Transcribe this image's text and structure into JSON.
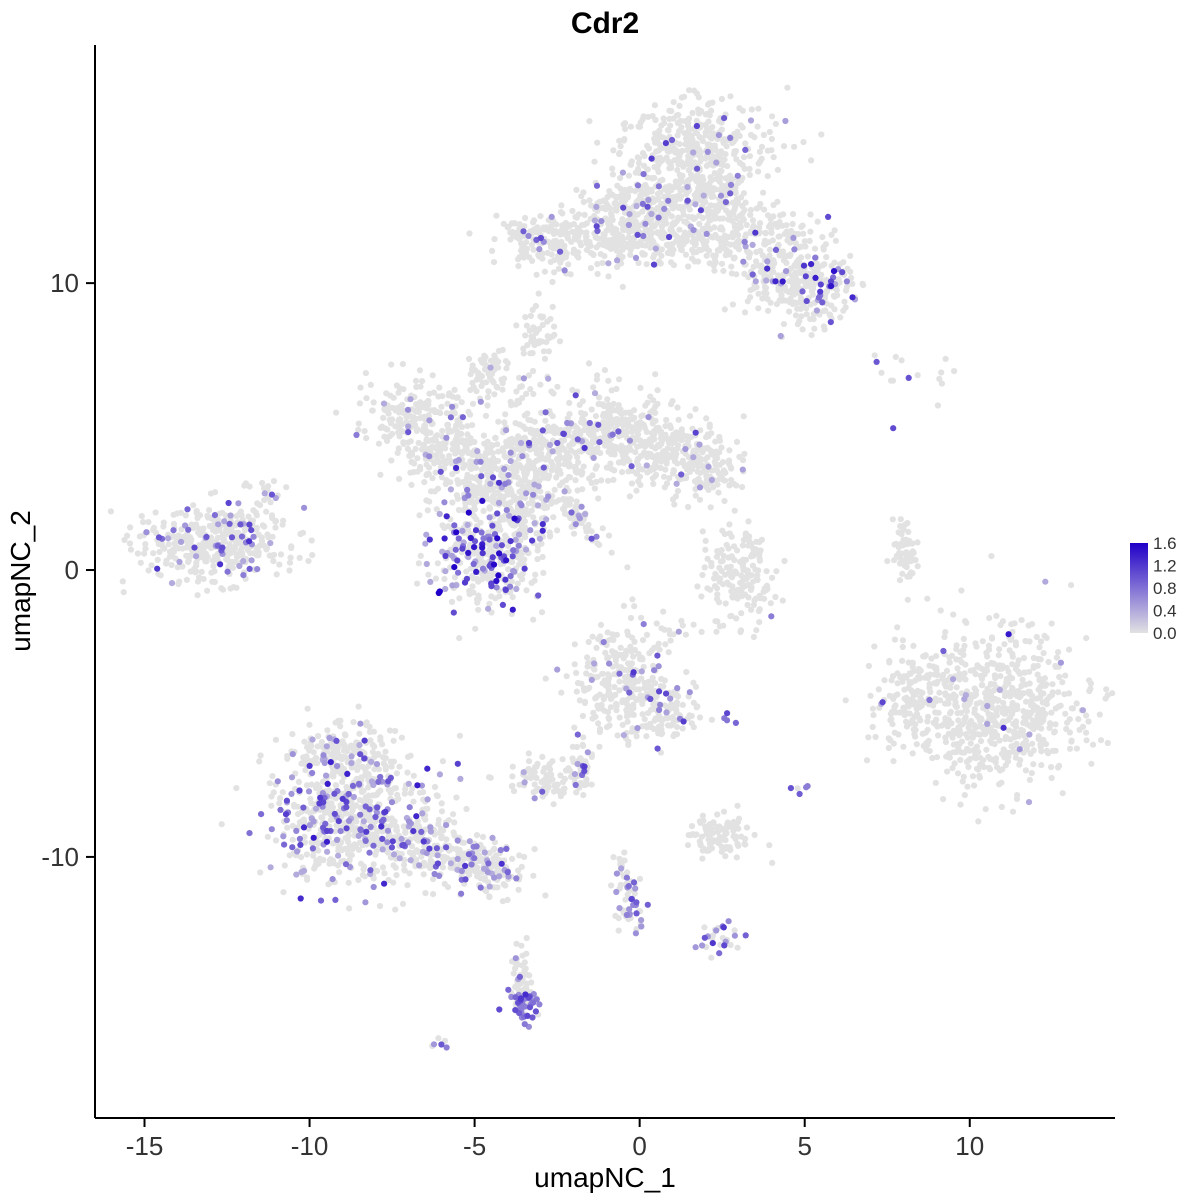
{
  "title": "Cdr2",
  "axes": {
    "x_label": "umapNC_1",
    "y_label": "umapNC_2",
    "x_ticks": [
      -15,
      -10,
      -5,
      0,
      5,
      10
    ],
    "y_ticks": [
      -10,
      0,
      10
    ]
  },
  "legend": {
    "labels": [
      "1.6",
      "1.2",
      "0.8",
      "0.4",
      "0.0"
    ],
    "max": 1.6,
    "low_color": "#E2E2E2",
    "high_color": "#2000C8"
  },
  "chart_data": {
    "type": "scatter",
    "title": "Cdr2",
    "xlabel": "umapNC_1",
    "ylabel": "umapNC_2",
    "xlim": [
      -16.5,
      14.4
    ],
    "ylim": [
      -19.1,
      18.3
    ],
    "grid": false,
    "legend_position": "right",
    "point_radius": 3.1,
    "seed": 20240615,
    "clusters": [
      {
        "name": "top-blob",
        "cx": 1.7,
        "cy": 14.7,
        "sx": 1.15,
        "sy": 0.85,
        "n": 380,
        "frac": 0.05,
        "emax": 1.3
      },
      {
        "name": "top-blob-left",
        "cx": -0.3,
        "cy": 12.4,
        "sx": 0.7,
        "sy": 0.6,
        "n": 160,
        "frac": 0.04,
        "emax": 1.2
      },
      {
        "name": "top-blob-right",
        "cx": 2.5,
        "cy": 13.0,
        "sx": 0.7,
        "sy": 0.6,
        "n": 110,
        "frac": 0.07,
        "emax": 1.2
      },
      {
        "name": "top-band",
        "cx": 0.6,
        "cy": 11.6,
        "sx": 2.1,
        "sy": 0.55,
        "n": 420,
        "frac": 0.05,
        "emax": 1.3
      },
      {
        "name": "top-band-left",
        "cx": -2.6,
        "cy": 11.4,
        "sx": 0.7,
        "sy": 0.45,
        "n": 110,
        "frac": 0.07,
        "emax": 1.2
      },
      {
        "name": "top-band-left-tip",
        "cx": -3.4,
        "cy": 11.9,
        "sx": 0.3,
        "sy": 0.3,
        "n": 35,
        "frac": 0.05,
        "emax": 1.0
      },
      {
        "name": "top-right-arm",
        "cx": 4.4,
        "cy": 10.5,
        "sx": 0.75,
        "sy": 0.8,
        "n": 240,
        "frac": 0.1,
        "emax": 1.4
      },
      {
        "name": "top-right-tip",
        "cx": 5.5,
        "cy": 9.6,
        "sx": 0.55,
        "sy": 0.6,
        "n": 110,
        "frac": 0.12,
        "emax": 1.5
      },
      {
        "name": "top-hook",
        "cx": -3.1,
        "cy": 8.2,
        "sx": 0.3,
        "sy": 0.5,
        "n": 45,
        "frac": 0.04,
        "emax": 0.8
      },
      {
        "name": "top-bridge",
        "cx": 1.2,
        "cy": 13.0,
        "sx": 0.9,
        "sy": 0.5,
        "n": 100,
        "frac": 0.05,
        "emax": 1.1
      },
      {
        "name": "mid-left-blob",
        "cx": -6.8,
        "cy": 5.4,
        "sx": 0.9,
        "sy": 0.65,
        "n": 190,
        "frac": 0.05,
        "emax": 1.2
      },
      {
        "name": "mid-left-lower",
        "cx": -5.8,
        "cy": 4.0,
        "sx": 0.8,
        "sy": 0.6,
        "n": 150,
        "frac": 0.06,
        "emax": 1.2
      },
      {
        "name": "mid-core",
        "cx": -4.3,
        "cy": 3.0,
        "sx": 0.95,
        "sy": 0.85,
        "n": 280,
        "frac": 0.12,
        "emax": 1.3
      },
      {
        "name": "mid-bridge",
        "cx": -3.0,
        "cy": 4.1,
        "sx": 0.8,
        "sy": 0.65,
        "n": 170,
        "frac": 0.07,
        "emax": 1.2
      },
      {
        "name": "mid-right-blob",
        "cx": -1.0,
        "cy": 4.8,
        "sx": 1.05,
        "sy": 0.8,
        "n": 300,
        "frac": 0.05,
        "emax": 1.2
      },
      {
        "name": "mid-right-ext",
        "cx": 0.9,
        "cy": 4.0,
        "sx": 1.0,
        "sy": 0.7,
        "n": 230,
        "frac": 0.04,
        "emax": 1.1
      },
      {
        "name": "mid-right-tip",
        "cx": 2.1,
        "cy": 3.5,
        "sx": 0.5,
        "sy": 0.5,
        "n": 70,
        "frac": 0.04,
        "emax": 1.0
      },
      {
        "name": "mid-purple-rich",
        "cx": -4.6,
        "cy": 0.5,
        "sx": 0.85,
        "sy": 0.85,
        "n": 340,
        "frac": 0.32,
        "emax": 1.6
      },
      {
        "name": "mid-dark-dot",
        "cx": -6.05,
        "cy": -0.75,
        "sx": 0.08,
        "sy": 0.08,
        "n": 2,
        "frac": 1.0,
        "emax": 1.6,
        "vmin": 1.6
      },
      {
        "name": "mid-diag-streak",
        "cx": -1.85,
        "cy": 1.75,
        "sx": 0.55,
        "sy": 0.18,
        "rot": -52,
        "n": 60,
        "frac": 0.12,
        "emax": 1.2
      },
      {
        "name": "mid-lower-bridge",
        "cx": -3.5,
        "cy": 2.0,
        "sx": 0.5,
        "sy": 0.5,
        "n": 70,
        "frac": 0.15,
        "emax": 1.2
      },
      {
        "name": "mid-top-noise",
        "cx": -4.0,
        "cy": 6.3,
        "sx": 0.8,
        "sy": 0.4,
        "n": 40,
        "frac": 0.03,
        "emax": 1.0
      },
      {
        "name": "mid-top-small-blob",
        "cx": -4.6,
        "cy": 7.0,
        "sx": 0.35,
        "sy": 0.3,
        "n": 45,
        "frac": 0.02,
        "emax": 0.8
      },
      {
        "name": "far-left-cluster",
        "cx": -12.9,
        "cy": 0.9,
        "sx": 1.05,
        "sy": 0.7,
        "n": 400,
        "frac": 0.1,
        "emax": 1.2
      },
      {
        "name": "far-left-tip",
        "cx": -11.3,
        "cy": 2.6,
        "sx": 0.3,
        "sy": 0.35,
        "n": 20,
        "frac": 0.15,
        "emax": 1.1
      },
      {
        "name": "center-right-ring",
        "cx": 3.0,
        "cy": -0.3,
        "sx": 0.55,
        "sy": 0.85,
        "n": 170,
        "frac": 0.01,
        "emax": 0.8
      },
      {
        "name": "right-sliver",
        "cx": 8.05,
        "cy": 0.5,
        "sx": 0.17,
        "sy": 0.65,
        "rot": 12,
        "n": 55,
        "frac": 0.05,
        "emax": 1.2
      },
      {
        "name": "right-big-cluster",
        "cx": 10.7,
        "cy": -4.7,
        "sx": 1.35,
        "sy": 1.35,
        "n": 720,
        "frac": 0.012,
        "emax": 1.2
      },
      {
        "name": "right-big-left-arm",
        "cx": 8.2,
        "cy": -4.3,
        "sx": 0.4,
        "sy": 0.75,
        "n": 90,
        "frac": 0.01,
        "emax": 0.8
      },
      {
        "name": "right-purple-1",
        "cx": 11.15,
        "cy": -2.3,
        "sx": 0.06,
        "sy": 0.06,
        "n": 1,
        "frac": 1.0,
        "emax": 1.4,
        "vmin": 1.4
      },
      {
        "name": "right-purple-2",
        "cx": 11.0,
        "cy": -5.35,
        "sx": 0.06,
        "sy": 0.06,
        "n": 1,
        "frac": 1.0,
        "emax": 1.2,
        "vmin": 1.2
      },
      {
        "name": "bottom-left-main",
        "cx": -8.7,
        "cy": -8.7,
        "sx": 1.25,
        "sy": 1.15,
        "n": 640,
        "frac": 0.26,
        "emax": 1.4
      },
      {
        "name": "bottom-left-top",
        "cx": -9.0,
        "cy": -6.4,
        "sx": 0.85,
        "sy": 0.55,
        "n": 150,
        "frac": 0.1,
        "emax": 1.2
      },
      {
        "name": "bottom-left-arm",
        "cx": -5.9,
        "cy": -9.8,
        "sx": 1.0,
        "sy": 0.5,
        "rot": -18,
        "n": 230,
        "frac": 0.2,
        "emax": 1.3
      },
      {
        "name": "bottom-left-arm-tip",
        "cx": -4.5,
        "cy": -10.5,
        "sx": 0.55,
        "sy": 0.4,
        "n": 90,
        "frac": 0.15,
        "emax": 1.2
      },
      {
        "name": "center-bottom-main",
        "cx": -0.5,
        "cy": -4.0,
        "sx": 0.8,
        "sy": 1.0,
        "n": 280,
        "frac": 0.1,
        "emax": 1.3
      },
      {
        "name": "center-bottom-arm",
        "cx": 0.8,
        "cy": -5.0,
        "sx": 0.5,
        "sy": 0.45,
        "n": 80,
        "frac": 0.06,
        "emax": 1.1
      },
      {
        "name": "cb-purple-pair",
        "cx": 2.75,
        "cy": -5.1,
        "sx": 0.15,
        "sy": 0.12,
        "n": 4,
        "frac": 0.8,
        "emax": 1.1,
        "vmin": 0.6
      },
      {
        "name": "cb-tail",
        "cx": -1.8,
        "cy": -6.8,
        "sx": 0.22,
        "sy": 0.55,
        "n": 45,
        "frac": 0.15,
        "emax": 1.2
      },
      {
        "name": "cb-small-blob",
        "cx": -2.8,
        "cy": -7.3,
        "sx": 0.55,
        "sy": 0.4,
        "n": 95,
        "frac": 0.06,
        "emax": 1.0
      },
      {
        "name": "cb-connector",
        "cx": 0.9,
        "cy": -2.4,
        "sx": 0.5,
        "sy": 0.4,
        "n": 14,
        "frac": 0.05,
        "emax": 0.8
      },
      {
        "name": "small-gray-blob",
        "cx": 2.4,
        "cy": -9.2,
        "sx": 0.5,
        "sy": 0.4,
        "n": 100,
        "frac": 0.01,
        "emax": 0.6
      },
      {
        "name": "purple-pair-right",
        "cx": 4.95,
        "cy": -7.6,
        "sx": 0.18,
        "sy": 0.15,
        "n": 5,
        "frac": 0.85,
        "emax": 1.2,
        "vmin": 0.6
      },
      {
        "name": "lower-streak",
        "cx": -0.3,
        "cy": -11.7,
        "sx": 0.22,
        "sy": 0.5,
        "n": 45,
        "frac": 0.35,
        "emax": 1.3,
        "vmin": 0.4
      },
      {
        "name": "lower-streak-top",
        "cx": -0.5,
        "cy": -10.4,
        "sx": 0.15,
        "sy": 0.4,
        "n": 15,
        "frac": 0.05,
        "emax": 0.8
      },
      {
        "name": "purple-blob-lower",
        "cx": 2.35,
        "cy": -12.8,
        "sx": 0.3,
        "sy": 0.25,
        "n": 28,
        "frac": 0.55,
        "emax": 1.3,
        "vmin": 0.4
      },
      {
        "name": "thin-streak",
        "cx": -3.6,
        "cy": -14.3,
        "sx": 0.16,
        "sy": 0.55,
        "n": 55,
        "frac": 0.06,
        "emax": 1.0
      },
      {
        "name": "dense-purple-bottom",
        "cx": -3.5,
        "cy": -15.2,
        "sx": 0.25,
        "sy": 0.3,
        "n": 48,
        "frac": 0.75,
        "emax": 1.4,
        "vmin": 0.5
      },
      {
        "name": "tiny-bottom-pair",
        "cx": -6.15,
        "cy": -16.5,
        "sx": 0.2,
        "sy": 0.12,
        "n": 6,
        "frac": 0.5,
        "emax": 1.0,
        "vmin": 0.4
      },
      {
        "name": "sparse-top-right",
        "cx": 8.7,
        "cy": 6.7,
        "sx": 0.9,
        "sy": 0.45,
        "n": 14,
        "frac": 0.08,
        "emax": 1.3
      },
      {
        "name": "single-purple-tr",
        "cx": 7.2,
        "cy": 7.3,
        "sx": 0.06,
        "sy": 0.06,
        "n": 1,
        "frac": 1.0,
        "emax": 0.9,
        "vmin": 0.9
      },
      {
        "name": "single-purple-mr",
        "cx": 7.65,
        "cy": 5.0,
        "sx": 0.06,
        "sy": 0.06,
        "n": 1,
        "frac": 1.0,
        "emax": 1.0,
        "vmin": 1.0
      }
    ]
  }
}
